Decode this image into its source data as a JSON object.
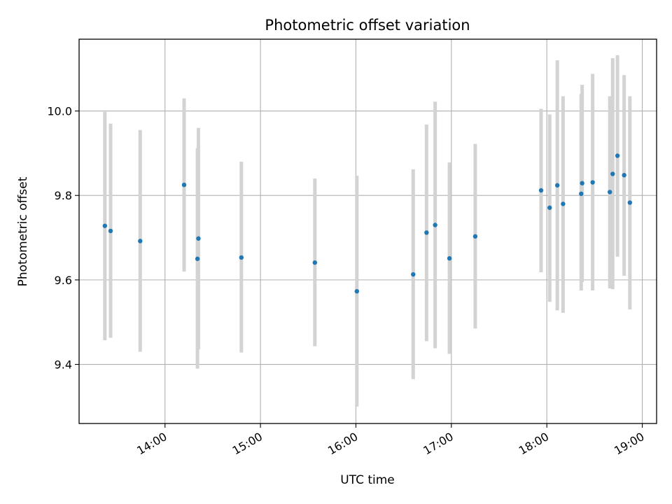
{
  "chart_data": {
    "type": "scatter",
    "title": "Photometric offset variation",
    "xlabel": "UTC time",
    "ylabel": "Photometric offset",
    "x_unit": "hours",
    "xlim": [
      13.1,
      19.15
    ],
    "ylim": [
      9.26,
      10.17
    ],
    "xticks": [
      {
        "value": 14,
        "label": "14:00"
      },
      {
        "value": 15,
        "label": "15:00"
      },
      {
        "value": 16,
        "label": "16:00"
      },
      {
        "value": 17,
        "label": "17:00"
      },
      {
        "value": 18,
        "label": "18:00"
      },
      {
        "value": 19,
        "label": "19:00"
      }
    ],
    "yticks": [
      {
        "value": 9.4,
        "label": "9.4"
      },
      {
        "value": 9.6,
        "label": "9.6"
      },
      {
        "value": 9.8,
        "label": "9.8"
      },
      {
        "value": 10.0,
        "label": "10.0"
      }
    ],
    "grid": true,
    "colors": {
      "point": "#1f77b4",
      "errorbar": "#d3d3d3",
      "grid": "#b0b0b0"
    },
    "points": [
      {
        "x": 13.37,
        "y": 9.728,
        "low": 9.457,
        "high": 9.998
      },
      {
        "x": 13.43,
        "y": 9.716,
        "low": 9.463,
        "high": 9.97
      },
      {
        "x": 13.74,
        "y": 9.692,
        "low": 9.43,
        "high": 9.955
      },
      {
        "x": 14.2,
        "y": 9.825,
        "low": 9.62,
        "high": 10.03
      },
      {
        "x": 14.34,
        "y": 9.65,
        "low": 9.39,
        "high": 9.912
      },
      {
        "x": 14.35,
        "y": 9.698,
        "low": 9.435,
        "high": 9.96
      },
      {
        "x": 14.8,
        "y": 9.653,
        "low": 9.428,
        "high": 9.88
      },
      {
        "x": 15.57,
        "y": 9.641,
        "low": 9.443,
        "high": 9.84
      },
      {
        "x": 16.01,
        "y": 9.573,
        "low": 9.3,
        "high": 9.847
      },
      {
        "x": 16.6,
        "y": 9.613,
        "low": 9.365,
        "high": 9.862
      },
      {
        "x": 16.74,
        "y": 9.712,
        "low": 9.455,
        "high": 9.968
      },
      {
        "x": 16.83,
        "y": 9.73,
        "low": 9.438,
        "high": 10.022
      },
      {
        "x": 16.98,
        "y": 9.651,
        "low": 9.425,
        "high": 9.878
      },
      {
        "x": 17.25,
        "y": 9.703,
        "low": 9.485,
        "high": 9.922
      },
      {
        "x": 17.94,
        "y": 9.812,
        "low": 9.618,
        "high": 10.005
      },
      {
        "x": 18.03,
        "y": 9.771,
        "low": 9.548,
        "high": 9.992
      },
      {
        "x": 18.11,
        "y": 9.824,
        "low": 9.528,
        "high": 10.12
      },
      {
        "x": 18.17,
        "y": 9.78,
        "low": 9.522,
        "high": 10.035
      },
      {
        "x": 18.36,
        "y": 9.804,
        "low": 9.575,
        "high": 10.04
      },
      {
        "x": 18.37,
        "y": 9.829,
        "low": 9.595,
        "high": 10.062
      },
      {
        "x": 18.48,
        "y": 9.831,
        "low": 9.575,
        "high": 10.088
      },
      {
        "x": 18.66,
        "y": 9.808,
        "low": 9.58,
        "high": 10.035
      },
      {
        "x": 18.69,
        "y": 9.851,
        "low": 9.578,
        "high": 10.125
      },
      {
        "x": 18.74,
        "y": 9.894,
        "low": 9.655,
        "high": 10.132
      },
      {
        "x": 18.81,
        "y": 9.848,
        "low": 9.61,
        "high": 10.085
      },
      {
        "x": 18.87,
        "y": 9.783,
        "low": 9.53,
        "high": 10.035
      }
    ]
  }
}
